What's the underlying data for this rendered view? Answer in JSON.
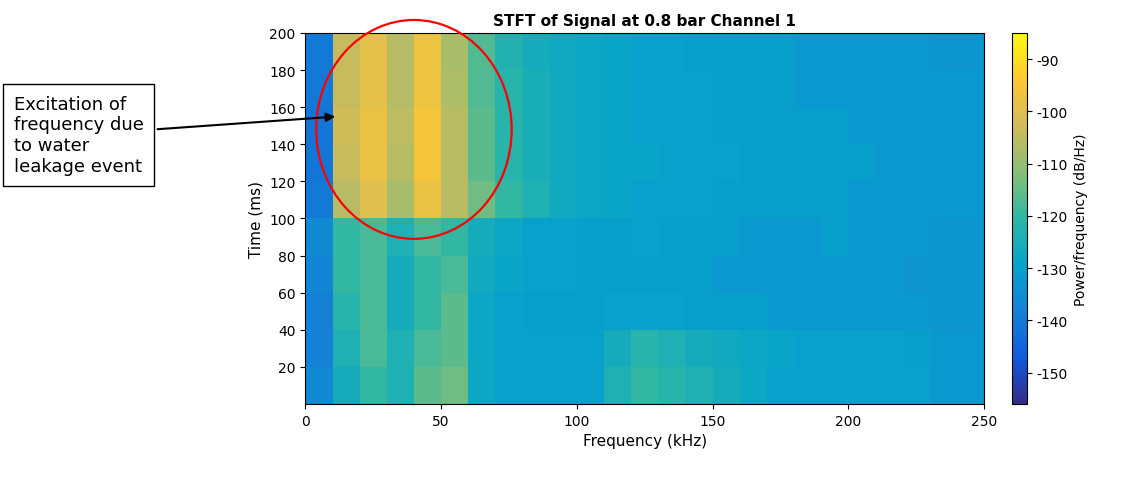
{
  "chart_data": {
    "type": "heatmap",
    "title": "STFT of Signal at 0.8 bar Channel 1",
    "x_label": "Frequency (kHz)",
    "y_label": "Time (ms)",
    "annotation": "Excitation of frequency due to water leakage event",
    "xlim": [
      0,
      250
    ],
    "xticks": [
      0,
      50,
      100,
      150,
      200,
      250
    ],
    "ylim": [
      0,
      200
    ],
    "yticks": [
      20,
      40,
      60,
      80,
      100,
      120,
      140,
      160,
      180,
      200
    ],
    "frequency_edges": [
      0,
      10,
      20,
      30,
      40,
      50,
      60,
      70,
      80,
      90,
      100,
      110,
      120,
      130,
      140,
      150,
      160,
      170,
      180,
      190,
      200,
      210,
      220,
      230,
      240,
      250
    ],
    "time_edges": [
      0,
      20,
      40,
      60,
      80,
      100,
      120,
      140,
      160,
      180,
      200
    ],
    "cells": [
      [
        -136,
        -126,
        -120,
        -124,
        -116,
        -114,
        -128,
        -130,
        -130,
        -130,
        -130,
        -124,
        -120,
        -122,
        -124,
        -126,
        -128,
        -130,
        -130,
        -130,
        -130,
        -130,
        -130,
        -132,
        -132
      ],
      [
        -138,
        -124,
        -118,
        -124,
        -118,
        -116,
        -128,
        -130,
        -130,
        -130,
        -130,
        -126,
        -122,
        -124,
        -126,
        -127,
        -128,
        -129,
        -130,
        -130,
        -130,
        -130,
        -131,
        -132,
        -132
      ],
      [
        -138,
        -122,
        -118,
        -126,
        -120,
        -116,
        -128,
        -130,
        -131,
        -131,
        -131,
        -130,
        -130,
        -130,
        -131,
        -131,
        -131,
        -132,
        -132,
        -132,
        -132,
        -132,
        -132,
        -133,
        -133
      ],
      [
        -137,
        -120,
        -118,
        -126,
        -120,
        -118,
        -127,
        -129,
        -130,
        -130,
        -131,
        -131,
        -131,
        -131,
        -131,
        -132,
        -132,
        -132,
        -132,
        -132,
        -132,
        -132,
        -133,
        -133,
        -133
      ],
      [
        -136,
        -120,
        -118,
        -124,
        -118,
        -120,
        -126,
        -128,
        -130,
        -130,
        -131,
        -131,
        -130,
        -131,
        -131,
        -131,
        -132,
        -132,
        -132,
        -131,
        -132,
        -132,
        -132,
        -133,
        -133
      ],
      [
        -140,
        -106,
        -100,
        -108,
        -98,
        -106,
        -114,
        -120,
        -124,
        -127,
        -128,
        -129,
        -130,
        -130,
        -130,
        -131,
        -131,
        -131,
        -131,
        -131,
        -132,
        -132,
        -132,
        -132,
        -132
      ],
      [
        -141,
        -104,
        -98,
        -106,
        -96,
        -106,
        -116,
        -122,
        -125,
        -127,
        -128,
        -129,
        -129,
        -130,
        -130,
        -130,
        -131,
        -131,
        -131,
        -131,
        -131,
        -132,
        -132,
        -132,
        -132
      ],
      [
        -141,
        -103,
        -98,
        -105,
        -96,
        -106,
        -116,
        -122,
        -125,
        -127,
        -128,
        -129,
        -130,
        -130,
        -130,
        -131,
        -131,
        -131,
        -131,
        -131,
        -132,
        -132,
        -132,
        -132,
        -132
      ],
      [
        -140,
        -104,
        -99,
        -106,
        -97,
        -107,
        -117,
        -122,
        -125,
        -127,
        -128,
        -129,
        -130,
        -130,
        -130,
        -131,
        -131,
        -131,
        -132,
        -132,
        -132,
        -132,
        -132,
        -132,
        -132
      ],
      [
        -140,
        -104,
        -99,
        -106,
        -97,
        -108,
        -117,
        -123,
        -126,
        -127,
        -128,
        -129,
        -130,
        -130,
        -131,
        -131,
        -131,
        -131,
        -132,
        -132,
        -132,
        -132,
        -132,
        -133,
        -133
      ]
    ],
    "colorbar_label": "Power/frequency (dB/Hz)",
    "colorbar_range": [
      -156,
      -85
    ],
    "colorbar_ticks": [
      -150,
      -140,
      -130,
      -120,
      -110,
      -100,
      -90
    ]
  }
}
